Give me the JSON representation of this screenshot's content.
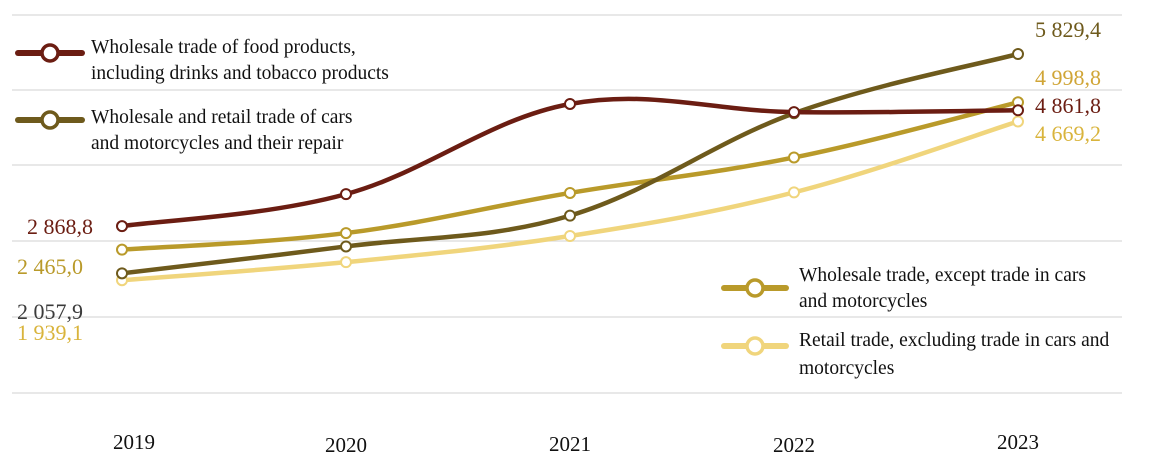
{
  "chart_data": {
    "type": "line",
    "categories": [
      "2019",
      "2020",
      "2021",
      "2022",
      "2023"
    ],
    "ylim": [
      0,
      6500
    ],
    "grid": true,
    "series": [
      {
        "name": "Wholesale trade of food products, including drinks and tobacco products",
        "legend_lines": [
          "Wholesale trade of food products,",
          "including drinks and tobacco products"
        ],
        "color": "#6b1d12",
        "values": [
          2868.8,
          3420,
          4970,
          4830,
          4861.8
        ],
        "labels": {
          "first": "2 868,8",
          "last": "4 861,8"
        }
      },
      {
        "name": "Wholesale and retail trade of cars and motorcycles and their repair",
        "legend_lines": [
          "Wholesale and retail trade of cars",
          "and motorcycles and their repair"
        ],
        "color": "#6e5a1c",
        "values": [
          2057.9,
          2520,
          3050,
          4810,
          5829.4
        ],
        "labels": {
          "first": "2 057,9",
          "last": "5 829,4"
        }
      },
      {
        "name": "Wholesale trade, except trade in cars and motorcycles",
        "legend_lines": [
          "Wholesale trade, except trade in cars",
          "and motorcycles"
        ],
        "color": "#b99a2a",
        "values": [
          2465.0,
          2750,
          3440,
          4050,
          4998.8
        ],
        "labels": {
          "first": "2 465,0",
          "last": "4 998,8"
        }
      },
      {
        "name": "Retail trade, excluding trade in cars and motorcycles",
        "legend_lines": [
          "Retail trade, excluding trade in cars and",
          "motorcycles"
        ],
        "color": "#f0d57c",
        "values": [
          1939.1,
          2250,
          2700,
          3450,
          4669.2
        ],
        "labels": {
          "first": "1 939,1",
          "last": "4 669,2"
        }
      }
    ]
  },
  "colors": {
    "grid": "#d9d9d9",
    "label_first_0": "#6b1d12",
    "label_first_1": "#3b3b3b",
    "label_first_2": "#b99a2a",
    "label_first_3": "#d9b43c",
    "label_last_0": "#6b1d12",
    "label_last_1": "#6e5a1c",
    "label_last_2": "#d0a536",
    "label_last_3": "#d9b43c"
  }
}
